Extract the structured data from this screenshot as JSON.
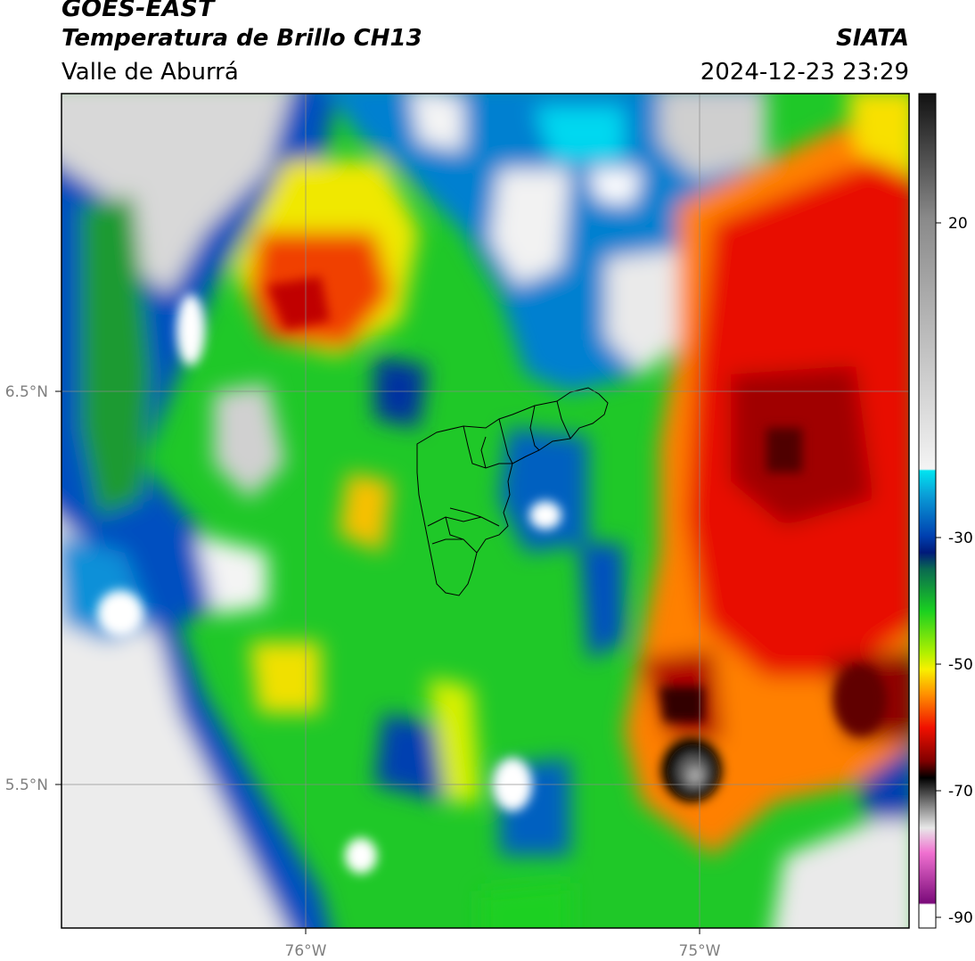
{
  "header": {
    "title": "GOES-EAST",
    "subtitle": "Temperatura de Brillo CH13",
    "region": "Valle de Aburrá",
    "brand": "SIATA",
    "timestamp": "2024-12-23 23:29"
  },
  "map": {
    "lon_labels": [
      "76°W",
      "75°W"
    ],
    "lat_labels": [
      "6.5°N",
      "5.5°N"
    ]
  },
  "colorbar": {
    "tick_labels": [
      "20",
      "-30",
      "-50",
      "-70",
      "-90"
    ],
    "palette": [
      "#1a1a1a",
      "#8c8c8c",
      "#f0f0f0",
      "#00e0f0",
      "#0050c8",
      "#001a80",
      "#0a8040",
      "#20e020",
      "#f0f000",
      "#ff8000",
      "#e00000",
      "#400000",
      "#505050",
      "#d0d0d0",
      "#f080d0",
      "#800080",
      "#ffffff"
    ]
  }
}
